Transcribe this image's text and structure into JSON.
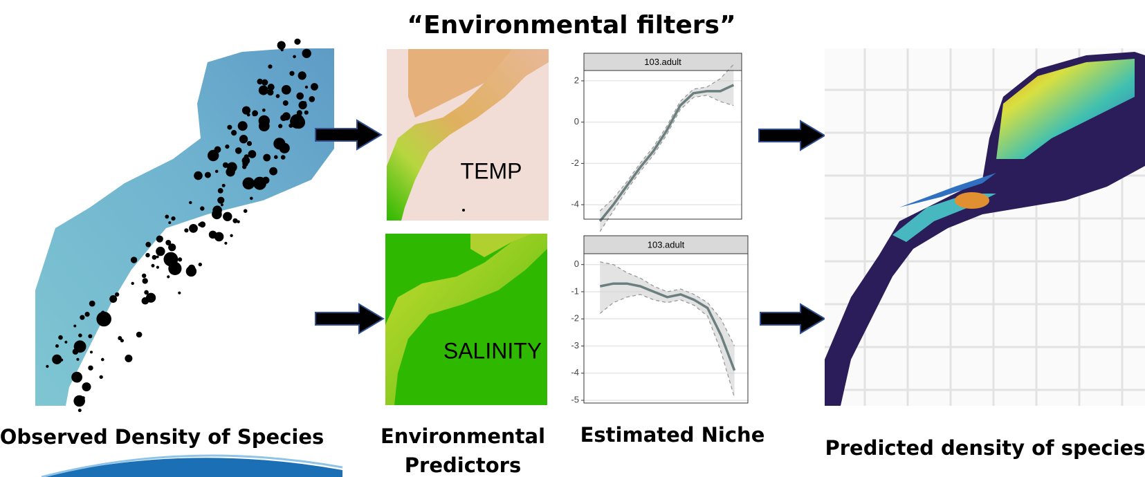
{
  "title": "“Environmental filters”",
  "map_labels": {
    "temp": "TEMP",
    "salinity": "SALINITY"
  },
  "captions": {
    "observed": "Observed Density of Species",
    "predictors_1": "Environmental",
    "predictors_2": "Predictors",
    "niche": "Estimated Niche",
    "predicted": "Predicted density of species"
  },
  "chart_data": [
    {
      "type": "line",
      "title": "103.adult",
      "x": [
        0,
        1,
        2,
        3,
        4,
        5,
        6,
        7,
        8,
        9,
        10
      ],
      "xlim": [
        -1.2,
        10.6
      ],
      "ylim": [
        -4.7,
        2.5
      ],
      "yticks": [
        2,
        0,
        -2,
        -4
      ],
      "grid": true,
      "color": "#6b7f7f",
      "values": [
        -4.8,
        -4.0,
        -3.1,
        -2.2,
        -1.4,
        -0.4,
        0.8,
        1.4,
        1.5,
        1.5,
        1.8
      ],
      "lower": [
        -5.3,
        -4.3,
        -3.3,
        -2.4,
        -1.6,
        -0.6,
        0.6,
        1.2,
        1.3,
        1.0,
        0.8
      ],
      "upper": [
        -4.3,
        -3.7,
        -2.9,
        -2.0,
        -1.2,
        -0.2,
        1.0,
        1.6,
        1.7,
        2.1,
        2.8
      ]
    },
    {
      "type": "line",
      "title": "103.adult",
      "x": [
        0,
        1,
        2,
        3,
        4,
        5,
        6,
        7,
        8,
        9,
        10
      ],
      "xlim": [
        -1.2,
        11.0
      ],
      "ylim": [
        -5.1,
        0.4
      ],
      "yticks": [
        0,
        -1,
        -2,
        -3,
        -4,
        -5
      ],
      "grid": true,
      "color": "#6b7f7f",
      "values": [
        -0.8,
        -0.7,
        -0.7,
        -0.8,
        -1.0,
        -1.2,
        -1.1,
        -1.3,
        -1.6,
        -2.6,
        -3.9
      ],
      "lower": [
        -1.8,
        -1.4,
        -1.2,
        -1.1,
        -1.3,
        -1.4,
        -1.3,
        -1.5,
        -1.9,
        -3.2,
        -4.9
      ],
      "upper": [
        0.1,
        0.0,
        -0.3,
        -0.5,
        -0.8,
        -1.0,
        -0.9,
        -1.1,
        -1.4,
        -2.0,
        -3.0
      ]
    }
  ]
}
